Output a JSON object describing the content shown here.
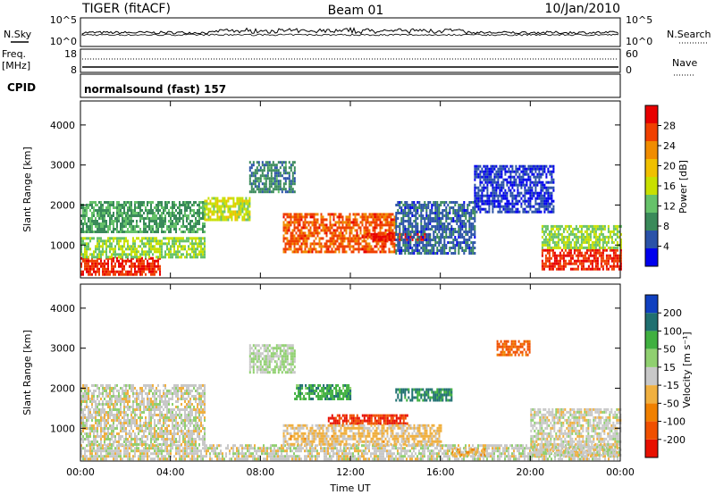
{
  "header": {
    "radar": "TIGER (fitACF)",
    "beam": "Beam 01",
    "date": "10/Jan/2010"
  },
  "noise_panel": {
    "left_label": "N.Sky",
    "right_label": "N.Search",
    "y_ticks_left": [
      "10^5",
      "10^0"
    ],
    "y_ticks_right": [
      "10^5",
      "10^0"
    ]
  },
  "freq_panel": {
    "left_label_1": "Freq.",
    "left_label_2": "[MHz]",
    "right_label": "Nave",
    "y_ticks_left": [
      "18",
      "8"
    ],
    "y_ticks_right": [
      "60",
      "0"
    ]
  },
  "cpid_panel": {
    "label": "CPID",
    "text": "normalsound (fast) 157"
  },
  "colors": {
    "power": [
      "#0000ee",
      "#2a52a8",
      "#3a8a5a",
      "#66c26a",
      "#c8e000",
      "#f0c000",
      "#f08c00",
      "#f04000",
      "#e80000"
    ],
    "velocity": [
      "#e81000",
      "#f05000",
      "#f08000",
      "#f0b040",
      "#c8c8c8",
      "#90d070",
      "#40b040",
      "#207070",
      "#1040c0"
    ]
  },
  "chart_data": [
    {
      "type": "heatmap",
      "parameter": "Power",
      "ylabel": "Slant Range [km]",
      "xlabel": "",
      "colorbar_label": "Power [dB]",
      "colorbar_ticks": [
        "4",
        "8",
        "12",
        "16",
        "20",
        "24",
        "28"
      ],
      "colorbar_range": [
        0,
        32
      ],
      "x_ticks": [
        "00:00",
        "04:00",
        "08:00",
        "12:00",
        "16:00",
        "20:00",
        "00:00"
      ],
      "x_range_hours": [
        0,
        24
      ],
      "y_ticks": [
        "1000",
        "2000",
        "3000",
        "4000"
      ],
      "ylim": [
        180,
        4600
      ],
      "regions": [
        {
          "t0": 0,
          "t1": 3.5,
          "r0": 280,
          "r1": 700,
          "value": 28
        },
        {
          "t0": 0,
          "t1": 5.5,
          "r0": 700,
          "r1": 1200,
          "value": 14
        },
        {
          "t0": 0,
          "t1": 5.5,
          "r0": 1300,
          "r1": 2100,
          "value": 10
        },
        {
          "t0": 5.5,
          "t1": 7.5,
          "r0": 1600,
          "r1": 2200,
          "value": 16
        },
        {
          "t0": 7.5,
          "t1": 9.5,
          "r0": 2300,
          "r1": 3100,
          "value": 8
        },
        {
          "t0": 9,
          "t1": 14,
          "r0": 800,
          "r1": 1800,
          "value": 26
        },
        {
          "t0": 12.5,
          "t1": 15.5,
          "r0": 1100,
          "r1": 1300,
          "value": 30
        },
        {
          "t0": 14,
          "t1": 17.5,
          "r0": 800,
          "r1": 2100,
          "value": 6
        },
        {
          "t0": 17.5,
          "t1": 21,
          "r0": 1800,
          "r1": 3000,
          "value": 4
        },
        {
          "t0": 20.5,
          "t1": 24,
          "r0": 400,
          "r1": 900,
          "value": 28
        },
        {
          "t0": 20.5,
          "t1": 24,
          "r0": 900,
          "r1": 1500,
          "value": 14
        }
      ]
    },
    {
      "type": "heatmap",
      "parameter": "Velocity",
      "ylabel": "Slant Range [km]",
      "xlabel": "Time UT",
      "colorbar_label": "Velocity [m s⁻¹]",
      "colorbar_ticks": [
        "-200",
        "-100",
        "-50",
        "-15",
        "15",
        "50",
        "100",
        "200"
      ],
      "colorbar_range": [
        -250,
        250
      ],
      "x_ticks": [
        "00:00",
        "04:00",
        "08:00",
        "12:00",
        "16:00",
        "20:00",
        "00:00"
      ],
      "x_range_hours": [
        0,
        24
      ],
      "y_ticks": [
        "1000",
        "2000",
        "3000",
        "4000"
      ],
      "ylim": [
        180,
        4600
      ],
      "regions": [
        {
          "t0": 0,
          "t1": 24,
          "r0": 250,
          "r1": 600,
          "value": 0
        },
        {
          "t0": 0,
          "t1": 5.5,
          "r0": 600,
          "r1": 2100,
          "value": 0
        },
        {
          "t0": 7.5,
          "t1": 9.5,
          "r0": 2400,
          "r1": 3100,
          "value": 30
        },
        {
          "t0": 9.5,
          "t1": 12,
          "r0": 1700,
          "r1": 2100,
          "value": 120
        },
        {
          "t0": 11,
          "t1": 14.5,
          "r0": 1100,
          "r1": 1350,
          "value": -200
        },
        {
          "t0": 9,
          "t1": 16,
          "r0": 600,
          "r1": 1100,
          "value": -40
        },
        {
          "t0": 14,
          "t1": 16.5,
          "r0": 1700,
          "r1": 2000,
          "value": 150
        },
        {
          "t0": 16.5,
          "t1": 18,
          "r0": 300,
          "r1": 500,
          "value": -60
        },
        {
          "t0": 20,
          "t1": 24,
          "r0": 300,
          "r1": 1500,
          "value": 0
        },
        {
          "t0": 18.5,
          "t1": 20,
          "r0": 2800,
          "r1": 3200,
          "value": -150
        }
      ]
    }
  ]
}
